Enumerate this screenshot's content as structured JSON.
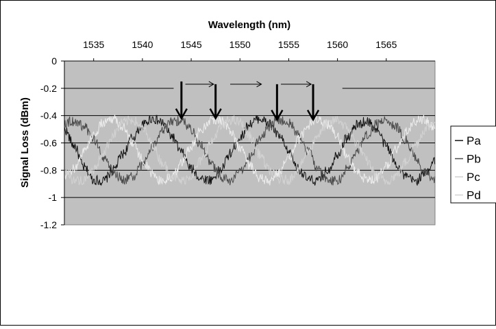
{
  "chart_data": {
    "type": "line",
    "title": "",
    "xlabel": "Wavelength (nm)",
    "ylabel": "Signal Loss (dBm)",
    "xlim": [
      1532,
      1570
    ],
    "ylim": [
      -1.2,
      0
    ],
    "x_ticks": [
      "1535",
      "1540",
      "1545",
      "1550",
      "1555",
      "1560",
      "1565"
    ],
    "y_ticks": [
      "0",
      "-0.2",
      "-0.4",
      "-0.6",
      "-0.8",
      "-1",
      "-1.2"
    ],
    "grid": "horizontal",
    "plot_background": "#c0c0c0",
    "legend_position": "right",
    "series": [
      {
        "name": "Pa",
        "color": "#111111",
        "phase": 0.0,
        "samples": [
          [
            1532,
            -0.5
          ],
          [
            1533,
            -0.62
          ],
          [
            1534,
            -0.78
          ],
          [
            1535,
            -0.87
          ],
          [
            1536,
            -0.88
          ],
          [
            1537,
            -0.8
          ],
          [
            1538,
            -0.68
          ],
          [
            1539,
            -0.56
          ],
          [
            1540,
            -0.47
          ],
          [
            1541,
            -0.42
          ],
          [
            1542,
            -0.45
          ],
          [
            1543,
            -0.55
          ],
          [
            1544,
            -0.67
          ],
          [
            1545,
            -0.79
          ],
          [
            1546,
            -0.86
          ],
          [
            1547,
            -0.87
          ],
          [
            1548,
            -0.8
          ],
          [
            1549,
            -0.68
          ],
          [
            1550,
            -0.56
          ],
          [
            1551,
            -0.46
          ],
          [
            1552,
            -0.42
          ],
          [
            1553,
            -0.46
          ],
          [
            1554,
            -0.55
          ],
          [
            1555,
            -0.67
          ],
          [
            1556,
            -0.79
          ],
          [
            1557,
            -0.87
          ],
          [
            1558,
            -0.88
          ],
          [
            1559,
            -0.8
          ],
          [
            1560,
            -0.68
          ],
          [
            1561,
            -0.56
          ],
          [
            1562,
            -0.47
          ],
          [
            1563,
            -0.44
          ],
          [
            1564,
            -0.5
          ],
          [
            1565,
            -0.62
          ],
          [
            1566,
            -0.75
          ],
          [
            1567,
            -0.85
          ],
          [
            1568,
            -0.88
          ],
          [
            1569,
            -0.82
          ],
          [
            1570,
            -0.72
          ]
        ]
      },
      {
        "name": "Pb",
        "color": "#4a4a4a",
        "phase": 1.57,
        "samples": [
          [
            1532,
            -0.45
          ],
          [
            1533,
            -0.44
          ],
          [
            1534,
            -0.48
          ],
          [
            1535,
            -0.57
          ],
          [
            1536,
            -0.7
          ],
          [
            1537,
            -0.81
          ],
          [
            1538,
            -0.87
          ],
          [
            1539,
            -0.85
          ],
          [
            1540,
            -0.76
          ],
          [
            1541,
            -0.63
          ],
          [
            1542,
            -0.52
          ],
          [
            1543,
            -0.45
          ],
          [
            1544,
            -0.43
          ],
          [
            1545,
            -0.5
          ],
          [
            1546,
            -0.62
          ],
          [
            1547,
            -0.75
          ],
          [
            1548,
            -0.85
          ],
          [
            1549,
            -0.88
          ],
          [
            1550,
            -0.82
          ],
          [
            1551,
            -0.7
          ],
          [
            1552,
            -0.58
          ],
          [
            1553,
            -0.48
          ],
          [
            1554,
            -0.43
          ],
          [
            1555,
            -0.45
          ],
          [
            1556,
            -0.54
          ],
          [
            1557,
            -0.66
          ],
          [
            1558,
            -0.79
          ],
          [
            1559,
            -0.87
          ],
          [
            1560,
            -0.88
          ],
          [
            1561,
            -0.79
          ],
          [
            1562,
            -0.66
          ],
          [
            1563,
            -0.54
          ],
          [
            1564,
            -0.46
          ],
          [
            1565,
            -0.43
          ],
          [
            1566,
            -0.48
          ],
          [
            1567,
            -0.58
          ],
          [
            1568,
            -0.71
          ],
          [
            1569,
            -0.82
          ],
          [
            1570,
            -0.88
          ]
        ]
      },
      {
        "name": "Pc",
        "color": "#ececec",
        "phase": 3.14,
        "samples": [
          [
            1532,
            -0.86
          ],
          [
            1533,
            -0.79
          ],
          [
            1534,
            -0.66
          ],
          [
            1535,
            -0.54
          ],
          [
            1536,
            -0.45
          ],
          [
            1537,
            -0.42
          ],
          [
            1538,
            -0.48
          ],
          [
            1539,
            -0.6
          ],
          [
            1540,
            -0.72
          ],
          [
            1541,
            -0.83
          ],
          [
            1542,
            -0.88
          ],
          [
            1543,
            -0.85
          ],
          [
            1544,
            -0.75
          ],
          [
            1545,
            -0.62
          ],
          [
            1546,
            -0.5
          ],
          [
            1547,
            -0.43
          ],
          [
            1548,
            -0.43
          ],
          [
            1549,
            -0.51
          ],
          [
            1550,
            -0.63
          ],
          [
            1551,
            -0.76
          ],
          [
            1552,
            -0.86
          ],
          [
            1553,
            -0.88
          ],
          [
            1554,
            -0.82
          ],
          [
            1555,
            -0.71
          ],
          [
            1556,
            -0.58
          ],
          [
            1557,
            -0.47
          ],
          [
            1558,
            -0.42
          ],
          [
            1559,
            -0.46
          ],
          [
            1560,
            -0.56
          ],
          [
            1561,
            -0.69
          ],
          [
            1562,
            -0.81
          ],
          [
            1563,
            -0.87
          ],
          [
            1564,
            -0.86
          ],
          [
            1565,
            -0.77
          ],
          [
            1566,
            -0.64
          ],
          [
            1567,
            -0.52
          ],
          [
            1568,
            -0.44
          ],
          [
            1569,
            -0.43
          ],
          [
            1570,
            -0.49
          ]
        ]
      },
      {
        "name": "Pd",
        "color": "#d2d2d2",
        "phase": 4.71,
        "samples": [
          [
            1532,
            -0.8
          ],
          [
            1533,
            -0.87
          ],
          [
            1534,
            -0.88
          ],
          [
            1535,
            -0.8
          ],
          [
            1536,
            -0.67
          ],
          [
            1537,
            -0.54
          ],
          [
            1538,
            -0.45
          ],
          [
            1539,
            -0.43
          ],
          [
            1540,
            -0.49
          ],
          [
            1541,
            -0.61
          ],
          [
            1542,
            -0.74
          ],
          [
            1543,
            -0.84
          ],
          [
            1544,
            -0.88
          ],
          [
            1545,
            -0.84
          ],
          [
            1546,
            -0.73
          ],
          [
            1547,
            -0.6
          ],
          [
            1548,
            -0.49
          ],
          [
            1549,
            -0.43
          ],
          [
            1550,
            -0.45
          ],
          [
            1551,
            -0.55
          ],
          [
            1552,
            -0.68
          ],
          [
            1553,
            -0.8
          ],
          [
            1554,
            -0.87
          ],
          [
            1555,
            -0.87
          ],
          [
            1556,
            -0.79
          ],
          [
            1557,
            -0.66
          ],
          [
            1558,
            -0.54
          ],
          [
            1559,
            -0.46
          ],
          [
            1560,
            -0.43
          ],
          [
            1561,
            -0.49
          ],
          [
            1562,
            -0.6
          ],
          [
            1563,
            -0.73
          ],
          [
            1564,
            -0.84
          ],
          [
            1565,
            -0.88
          ],
          [
            1566,
            -0.84
          ],
          [
            1567,
            -0.74
          ],
          [
            1568,
            -0.61
          ],
          [
            1569,
            -0.5
          ],
          [
            1570,
            -0.44
          ]
        ]
      }
    ],
    "annotations": {
      "down_arrows": [
        {
          "x": 1544.0,
          "y_top": -0.15,
          "y_bottom": -0.42
        },
        {
          "x": 1547.5,
          "y_top": -0.17,
          "y_bottom": -0.42
        },
        {
          "x": 1553.8,
          "y_top": -0.17,
          "y_bottom": -0.43
        },
        {
          "x": 1557.5,
          "y_top": -0.17,
          "y_bottom": -0.43
        }
      ],
      "right_arrows": [
        {
          "x_from": 1544.4,
          "x_to": 1547.3,
          "y": -0.17
        },
        {
          "x_from": 1549.0,
          "x_to": 1552.2,
          "y": -0.17
        },
        {
          "x_from": 1554.2,
          "x_to": 1557.3,
          "y": -0.17
        }
      ],
      "clear_band": {
        "x_from": 1543.2,
        "x_to": 1560.5,
        "y": -0.2
      }
    }
  }
}
